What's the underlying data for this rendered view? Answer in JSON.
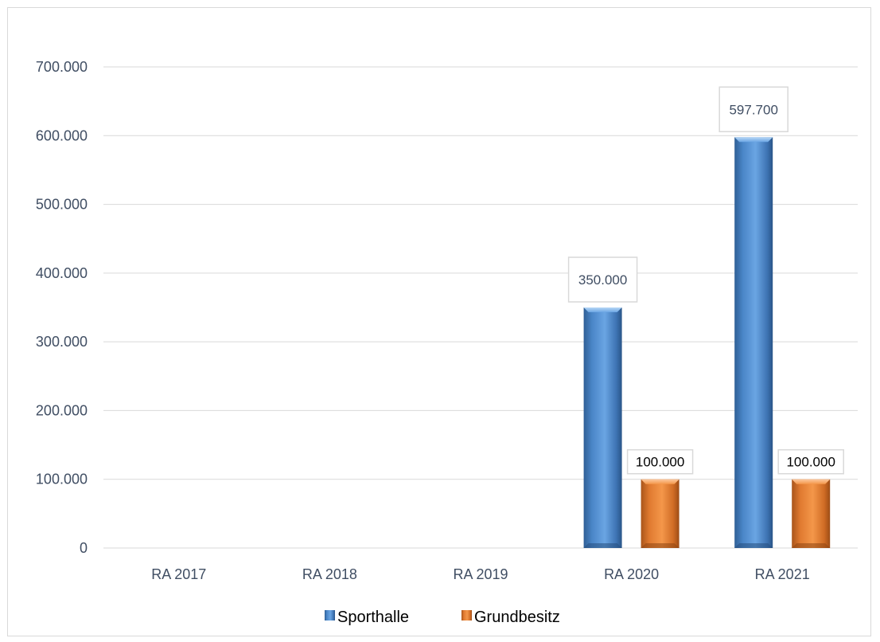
{
  "chart_data": {
    "type": "bar",
    "categories": [
      "RA 2017",
      "RA 2018",
      "RA 2019",
      "RA 2020",
      "RA 2021"
    ],
    "series": [
      {
        "name": "Sporthalle",
        "values": [
          null,
          null,
          null,
          350000,
          597700
        ],
        "data_labels": [
          "",
          "",
          "",
          "350.000",
          "597.700"
        ],
        "color": "#5b9bd5"
      },
      {
        "name": "Grundbesitz",
        "values": [
          null,
          null,
          null,
          100000,
          100000
        ],
        "data_labels": [
          "",
          "",
          "",
          "100.000",
          "100.000"
        ],
        "color": "#ed7d31"
      }
    ],
    "ylim": [
      0,
      700000
    ],
    "ytick_values": [
      0,
      100000,
      200000,
      300000,
      400000,
      500000,
      600000,
      700000
    ],
    "ytick_labels": [
      "0",
      "100.000",
      "200.000",
      "300.000",
      "400.000",
      "500.000",
      "600.000",
      "700.000"
    ],
    "grid": true,
    "legend_position": "bottom"
  }
}
